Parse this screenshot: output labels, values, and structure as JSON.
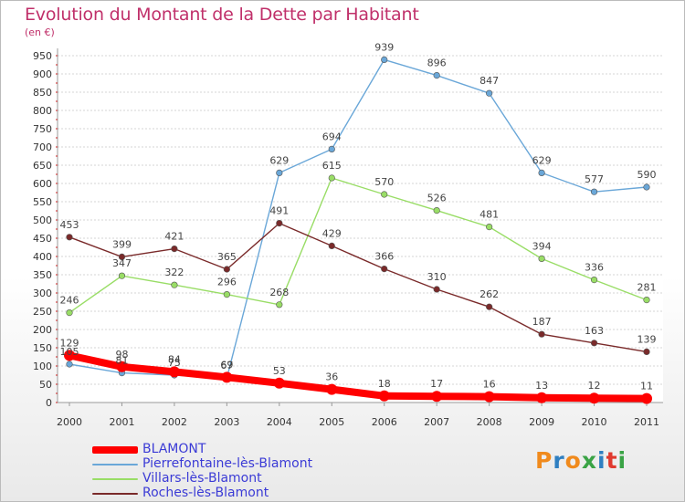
{
  "header": {
    "title": "Evolution du Montant de la Dette par Habitant",
    "subtitle": "(en €)"
  },
  "logo": {
    "text": "Proxiti",
    "colors": [
      "#f08a1c",
      "#2f7fc1",
      "#f08a1c",
      "#3aa345",
      "#2f7fc1",
      "#e03a2f",
      "#3aa345"
    ]
  },
  "chart_data": {
    "type": "line",
    "title": "Evolution du Montant de la Dette par Habitant",
    "subtitle": "(en €)",
    "xlabel": "",
    "ylabel": "",
    "x": [
      "2000",
      "2001",
      "2002",
      "2003",
      "2004",
      "2005",
      "2006",
      "2007",
      "2008",
      "2009",
      "2010",
      "2011"
    ],
    "ylim": [
      0,
      950
    ],
    "yticks": [
      0,
      50,
      100,
      150,
      200,
      250,
      300,
      350,
      400,
      450,
      500,
      550,
      600,
      650,
      700,
      750,
      800,
      850,
      900,
      950
    ],
    "grid": "horizontal dashed",
    "legend_position": "bottom-left",
    "series": [
      {
        "name": "BLAMONT",
        "color": "#ff0000",
        "thick": true,
        "values": [
          129,
          98,
          84,
          69,
          53,
          36,
          18,
          17,
          16,
          13,
          12,
          11
        ],
        "labels": [
          "129",
          "98",
          "84",
          "69",
          "53",
          "36",
          "18",
          "17",
          "16",
          "13",
          "12",
          "11"
        ]
      },
      {
        "name": "Pierrefontaine-lès-Blamont",
        "color": "#6aa7d8",
        "thick": false,
        "values": [
          105,
          81,
          75,
          67,
          629,
          694,
          939,
          896,
          847,
          629,
          577,
          590
        ],
        "labels": [
          "105",
          "81",
          "75",
          "67",
          "629",
          "694",
          "939",
          "896",
          "847",
          "629",
          "577",
          "590"
        ]
      },
      {
        "name": "Villars-lès-Blamont",
        "color": "#99dd66",
        "thick": false,
        "values": [
          246,
          347,
          322,
          296,
          268,
          615,
          570,
          526,
          481,
          394,
          336,
          281
        ],
        "labels": [
          "246",
          "347",
          "322",
          "296",
          "268",
          "615",
          "570",
          "526",
          "481",
          "394",
          "336",
          "281"
        ]
      },
      {
        "name": "Roches-lès-Blamont",
        "color": "#7a2a2a",
        "thick": false,
        "values": [
          453,
          399,
          421,
          365,
          491,
          429,
          366,
          310,
          262,
          187,
          163,
          139
        ],
        "labels": [
          "453",
          "399",
          "421",
          "365",
          "491",
          "429",
          "366",
          "310",
          "262",
          "187",
          "163",
          "139"
        ]
      }
    ]
  }
}
